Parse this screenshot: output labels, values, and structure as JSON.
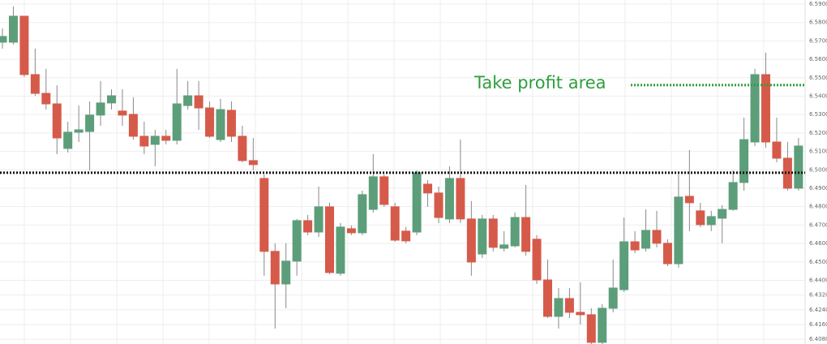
{
  "chart_data": {
    "type": "candlestick",
    "ylim": [
      6.4054,
      6.5922
    ],
    "yticks": [
      {
        "value": 6.59,
        "label": "6.5900"
      },
      {
        "value": 6.58,
        "label": "6.5800"
      },
      {
        "value": 6.57,
        "label": "6.5700"
      },
      {
        "value": 6.56,
        "label": "6.5600"
      },
      {
        "value": 6.55,
        "label": "6.5500"
      },
      {
        "value": 6.54,
        "label": "6.5400"
      },
      {
        "value": 6.53,
        "label": "6.5300"
      },
      {
        "value": 6.52,
        "label": "6.5200"
      },
      {
        "value": 6.51,
        "label": "6.5100"
      },
      {
        "value": 6.5,
        "label": "6.5000"
      },
      {
        "value": 6.49,
        "label": "6.4900"
      },
      {
        "value": 6.48,
        "label": "6.4800"
      },
      {
        "value": 6.47,
        "label": "6.4700"
      },
      {
        "value": 6.46,
        "label": "6.4600"
      },
      {
        "value": 6.45,
        "label": "6.4500"
      },
      {
        "value": 6.44,
        "label": "6.4400"
      },
      {
        "value": 6.432,
        "label": "6.4320"
      },
      {
        "value": 6.424,
        "label": "6.4240"
      },
      {
        "value": 6.416,
        "label": "6.4160"
      },
      {
        "value": 6.408,
        "label": "6.4080"
      }
    ],
    "grid": true,
    "up_color": "#5c9e7a",
    "down_color": "#d65a4a",
    "candles": [
      [
        6.5693,
        6.5768,
        6.5658,
        6.5724
      ],
      [
        6.5693,
        6.5887,
        6.568,
        6.5834
      ],
      [
        6.5834,
        6.5834,
        6.5504,
        6.5517
      ],
      [
        6.5517,
        6.5658,
        6.5402,
        6.5415
      ],
      [
        6.5415,
        6.5548,
        6.5327,
        6.5358
      ],
      [
        6.5358,
        6.5459,
        6.5085,
        6.5173
      ],
      [
        6.5116,
        6.5261,
        6.5094,
        6.5204
      ],
      [
        6.5204,
        6.5349,
        6.5151,
        6.5217
      ],
      [
        6.5208,
        6.5371,
        6.4997,
        6.5297
      ],
      [
        6.5297,
        6.5482,
        6.5239,
        6.5363
      ],
      [
        6.5363,
        6.5437,
        6.5327,
        6.5402
      ],
      [
        6.5319,
        6.5437,
        6.5239,
        6.5297
      ],
      [
        6.5301,
        6.5393,
        6.5164,
        6.5182
      ],
      [
        6.5182,
        6.5261,
        6.5085,
        6.5129
      ],
      [
        6.5138,
        6.5217,
        6.5019,
        6.5182
      ],
      [
        6.5182,
        6.5217,
        6.5138,
        6.516
      ],
      [
        6.516,
        6.5548,
        6.5138,
        6.5358
      ],
      [
        6.5349,
        6.5482,
        6.5327,
        6.5402
      ],
      [
        6.5402,
        6.5482,
        6.5217,
        6.5336
      ],
      [
        6.5336,
        6.5371,
        6.5173,
        6.5182
      ],
      [
        6.5164,
        6.5385,
        6.5151,
        6.5327
      ],
      [
        6.5323,
        6.5371,
        6.5151,
        6.5182
      ],
      [
        6.5182,
        6.5239,
        6.5041,
        6.505
      ],
      [
        6.505,
        6.5173,
        6.4997,
        6.5028
      ],
      [
        6.4953,
        6.4975,
        6.4425,
        6.4557
      ],
      [
        6.4557,
        6.4601,
        6.4138,
        6.438
      ],
      [
        6.438,
        6.4601,
        6.4248,
        6.4504
      ],
      [
        6.4504,
        6.4733,
        6.4425,
        6.4724
      ],
      [
        6.4724,
        6.4755,
        6.4645,
        6.4662
      ],
      [
        6.4662,
        6.4909,
        6.4636,
        6.4799
      ],
      [
        6.4799,
        6.4821,
        6.4433,
        6.4442
      ],
      [
        6.4438,
        6.4711,
        6.4425,
        6.4689
      ],
      [
        6.468,
        6.4697,
        6.4645,
        6.4658
      ],
      [
        6.4658,
        6.4887,
        6.4645,
        6.4865
      ],
      [
        6.4785,
        6.5085,
        6.4768,
        6.4962
      ],
      [
        6.4962,
        6.4975,
        6.4799,
        6.4812
      ],
      [
        6.4799,
        6.4821,
        6.4609,
        6.4618
      ],
      [
        6.4667,
        6.4689,
        6.4601,
        6.4614
      ],
      [
        6.4662,
        6.4997,
        6.4645,
        6.4984
      ],
      [
        6.4922,
        6.4944,
        6.4799,
        6.4874
      ],
      [
        6.4874,
        6.4909,
        6.4711,
        6.4741
      ],
      [
        6.4733,
        6.5019,
        6.4711,
        6.4953
      ],
      [
        6.4953,
        6.5164,
        6.4711,
        6.4733
      ],
      [
        6.4733,
        6.483,
        6.4425,
        6.4499
      ],
      [
        6.4543,
        6.4755,
        6.4521,
        6.4733
      ],
      [
        6.4733,
        6.4755,
        6.4557,
        6.4579
      ],
      [
        6.4574,
        6.4667,
        6.4557,
        6.4592
      ],
      [
        6.4587,
        6.4768,
        6.4579,
        6.4741
      ],
      [
        6.4741,
        6.4918,
        6.4534,
        6.4557
      ],
      [
        6.4623,
        6.4645,
        6.438,
        6.4402
      ],
      [
        6.4402,
        6.4512,
        6.4195,
        6.4204
      ],
      [
        6.4204,
        6.4358,
        6.4138,
        6.4301
      ],
      [
        6.4301,
        6.4358,
        6.4195,
        6.4226
      ],
      [
        6.4226,
        6.4389,
        6.416,
        6.4213
      ],
      [
        6.4213,
        6.4248,
        6.4054,
        6.4063
      ],
      [
        6.4063,
        6.427,
        6.4054,
        6.4248
      ],
      [
        6.4248,
        6.4512,
        6.4226,
        6.4358
      ],
      [
        6.4349,
        6.4741,
        6.4336,
        6.4609
      ],
      [
        6.4609,
        6.4667,
        6.4548,
        6.4565
      ],
      [
        6.4574,
        6.4785,
        6.4557,
        6.4671
      ],
      [
        6.4671,
        6.4777,
        6.4579,
        6.4601
      ],
      [
        6.4601,
        6.4623,
        6.4477,
        6.449
      ],
      [
        6.449,
        6.4975,
        6.4469,
        6.4852
      ],
      [
        6.4856,
        6.5107,
        6.4667,
        6.4821
      ],
      [
        6.4777,
        6.4821,
        6.4689,
        6.4702
      ],
      [
        6.4702,
        6.4777,
        6.4667,
        6.4746
      ],
      [
        6.4737,
        6.4808,
        6.4601,
        6.4785
      ],
      [
        6.4785,
        6.4997,
        6.4777,
        6.4931
      ],
      [
        6.4931,
        6.5283,
        6.4887,
        6.5164
      ],
      [
        6.5151,
        6.5548,
        6.5129,
        6.5517
      ],
      [
        6.5517,
        6.5636,
        6.512,
        6.5151
      ],
      [
        6.5151,
        6.5283,
        6.5041,
        6.5063
      ],
      [
        6.5063,
        6.5151,
        6.4887,
        6.49
      ],
      [
        6.49,
        6.5173,
        6.4887,
        6.5129
      ]
    ],
    "levels": [
      {
        "value": 6.4984,
        "color": "#111111"
      },
      {
        "value": 6.546,
        "color": "#2e9e3e",
        "label": "Take profit area"
      }
    ]
  }
}
